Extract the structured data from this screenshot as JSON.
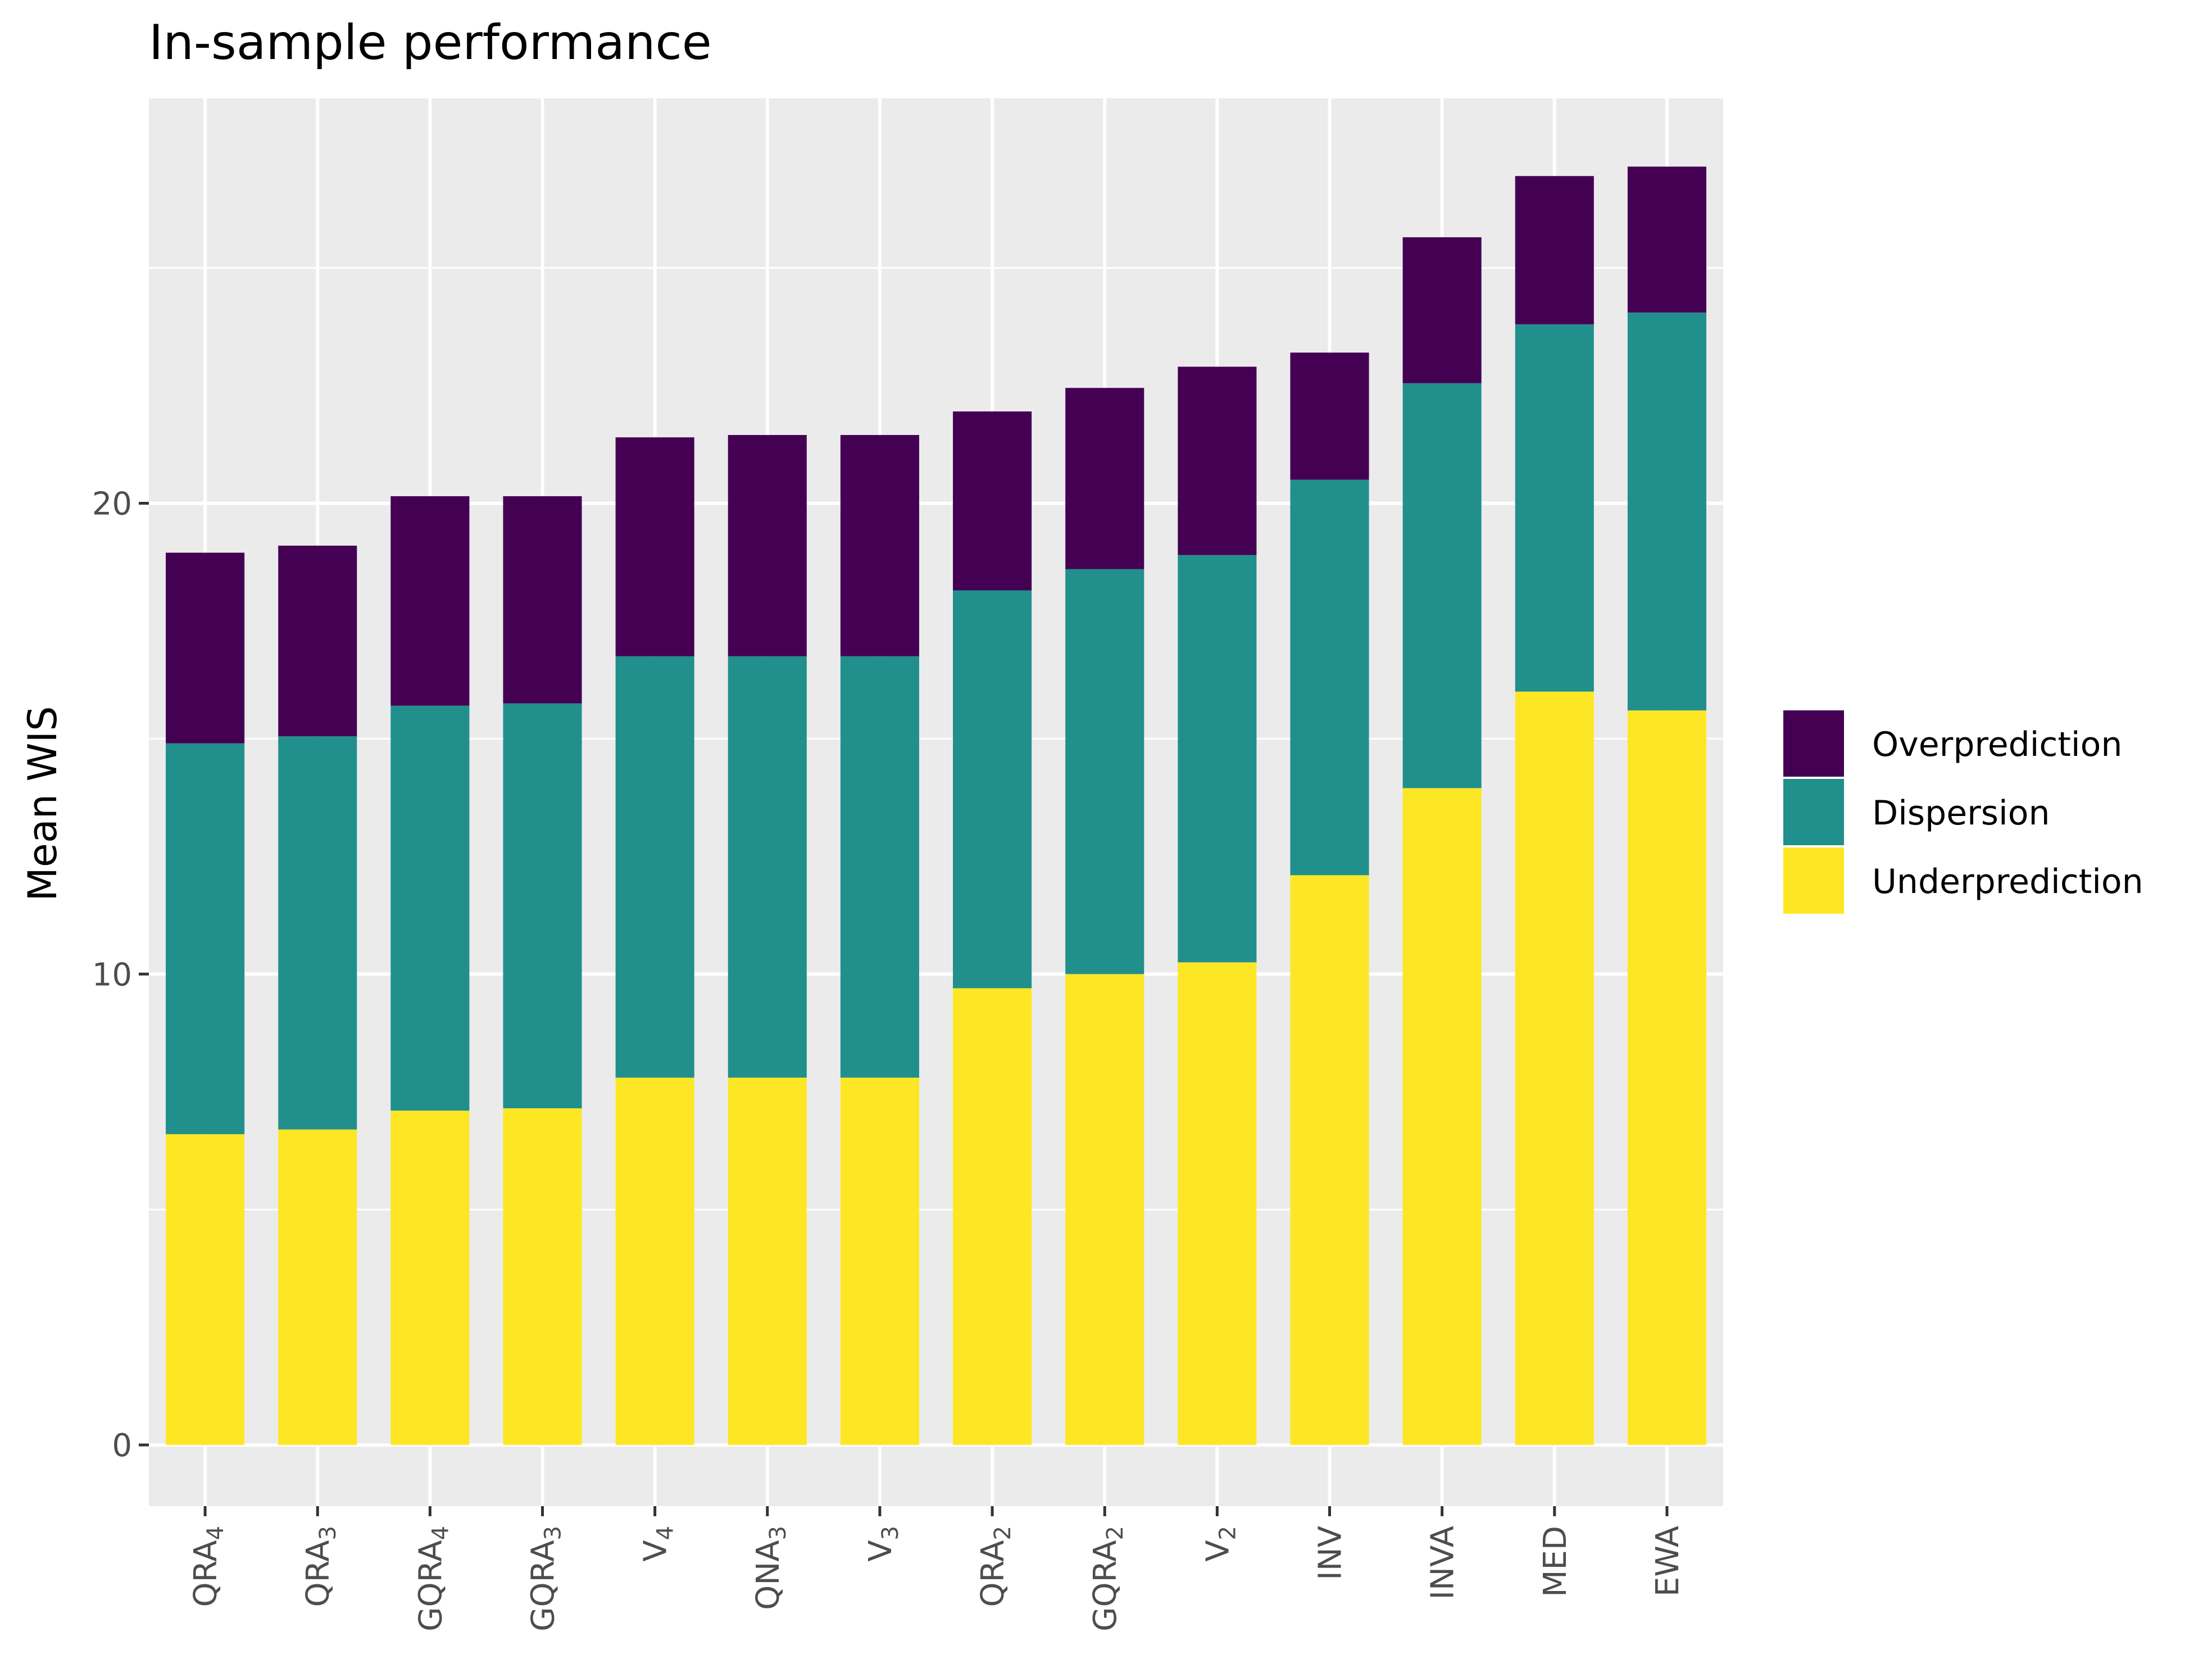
{
  "chart_data": {
    "type": "bar",
    "stacked": true,
    "title": "In-sample performance",
    "xlabel": "",
    "ylabel": "Mean WIS",
    "ylim": [
      -1.3,
      28.6
    ],
    "yticks": [
      0,
      10,
      20
    ],
    "grid": true,
    "legend_position": "right",
    "categories": [
      {
        "base": "QRA",
        "sub": "4"
      },
      {
        "base": "QRA",
        "sub": "3"
      },
      {
        "base": "GQRA",
        "sub": "4"
      },
      {
        "base": "GQRA",
        "sub": "3"
      },
      {
        "base": "V",
        "sub": "4"
      },
      {
        "base": "QNA",
        "sub": "3"
      },
      {
        "base": "V",
        "sub": "3"
      },
      {
        "base": "QRA",
        "sub": "2"
      },
      {
        "base": "GQRA",
        "sub": "2"
      },
      {
        "base": "V",
        "sub": "2"
      },
      {
        "base": "INV",
        "sub": ""
      },
      {
        "base": "INVA",
        "sub": ""
      },
      {
        "base": "MED",
        "sub": ""
      },
      {
        "base": "EWA",
        "sub": ""
      }
    ],
    "series": [
      {
        "name": "Underprediction",
        "color": "#FDE725",
        "values": [
          6.6,
          6.7,
          7.1,
          7.15,
          7.8,
          7.8,
          7.8,
          9.7,
          10.0,
          10.25,
          12.1,
          13.95,
          16.0,
          15.6
        ]
      },
      {
        "name": "Dispersion",
        "color": "#21908C",
        "values": [
          8.3,
          8.35,
          8.6,
          8.6,
          8.95,
          8.95,
          8.95,
          8.45,
          8.6,
          8.65,
          8.4,
          8.6,
          7.8,
          8.45
        ]
      },
      {
        "name": "Overprediction",
        "color": "#440154",
        "values": [
          4.05,
          4.05,
          4.45,
          4.4,
          4.65,
          4.7,
          4.7,
          3.8,
          3.85,
          4.0,
          2.7,
          3.1,
          3.15,
          3.1
        ]
      }
    ],
    "legend_order": [
      "Overprediction",
      "Dispersion",
      "Underprediction"
    ]
  },
  "colors": {
    "panel_background": "#EBEBEB",
    "grid_major": "#FFFFFF",
    "tick_text": "#4D4D4D"
  }
}
